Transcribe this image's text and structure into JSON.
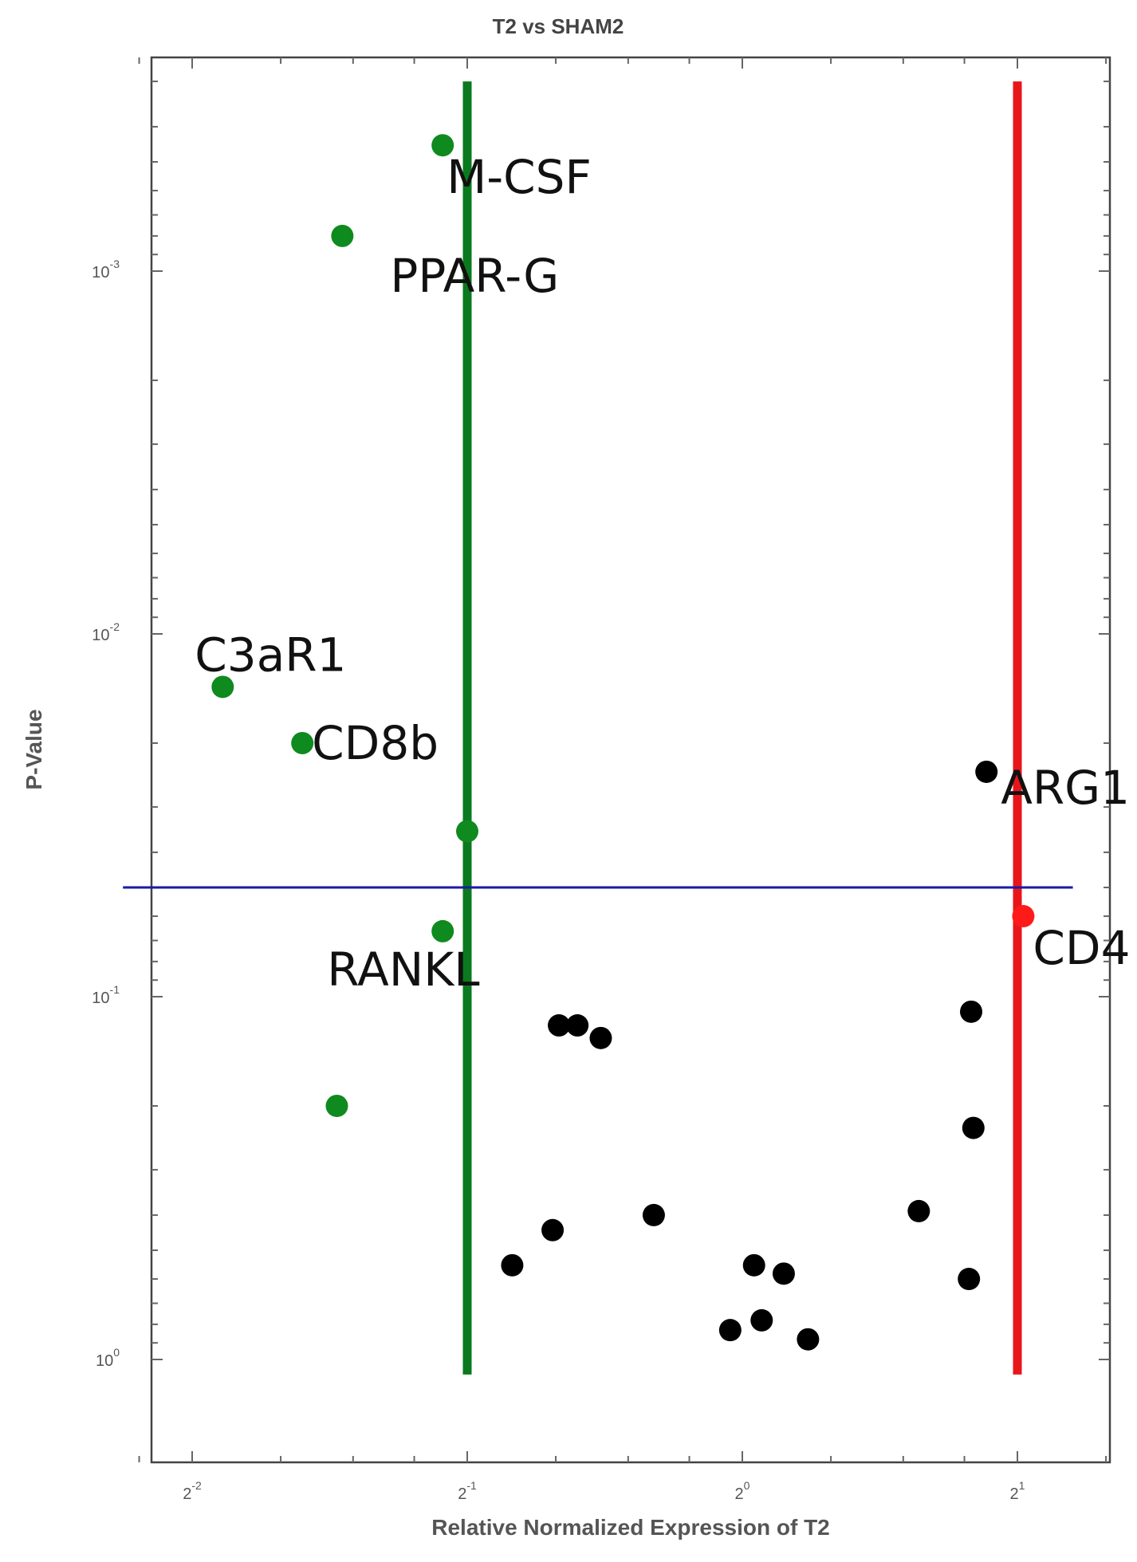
{
  "chart_data": {
    "type": "scatter",
    "title": "T2 vs SHAM2",
    "xlabel": "Relative Normalized Expression of T2",
    "ylabel": "P-Value",
    "x_scale": "log2",
    "y_scale": "log10-inverted",
    "xlim": [
      0.2,
      2.5
    ],
    "ylim": [
      0.00025,
      1.5
    ],
    "x_ticks": [
      {
        "value": 0.25,
        "base": "2",
        "exp": "-2"
      },
      {
        "value": 0.5,
        "base": "2",
        "exp": "-1"
      },
      {
        "value": 1,
        "base": "2",
        "exp": "0"
      },
      {
        "value": 2,
        "base": "2",
        "exp": "1"
      }
    ],
    "y_ticks": [
      {
        "value": 0.001,
        "base": "10",
        "exp": "-3"
      },
      {
        "value": 0.01,
        "base": "10",
        "exp": "-2"
      },
      {
        "value": 0.1,
        "base": "10",
        "exp": "-1"
      },
      {
        "value": 1,
        "base": "10",
        "exp": "0"
      }
    ],
    "threshold_lines": [
      {
        "type": "vertical",
        "value": 0.5,
        "color": "#0b7a1e",
        "range": [
          0.0003,
          1.1
        ]
      },
      {
        "type": "vertical",
        "value": 2,
        "color": "#e8161b",
        "range": [
          0.0003,
          1.1
        ]
      },
      {
        "type": "horizontal",
        "value": 0.05,
        "color": "#1a1aa8",
        "range": [
          0.21,
          2.3
        ]
      }
    ],
    "colors": {
      "down": "#0f8a1e",
      "up": "#ff1a1a",
      "nochange": "#000000"
    },
    "series": [
      {
        "group": "down",
        "points": [
          {
            "x": 0.47,
            "y": 0.00045,
            "label": "M-CSF"
          },
          {
            "x": 0.365,
            "y": 0.0008,
            "label": "PPAR-G"
          },
          {
            "x": 0.27,
            "y": 0.014,
            "label": "C3aR1"
          },
          {
            "x": 0.33,
            "y": 0.02,
            "label": "CD8b"
          },
          {
            "x": 0.5,
            "y": 0.035,
            "label": ""
          },
          {
            "x": 0.47,
            "y": 0.066,
            "label": "RANKL"
          },
          {
            "x": 0.36,
            "y": 0.2,
            "label": ""
          }
        ]
      },
      {
        "group": "up",
        "points": [
          {
            "x": 2.03,
            "y": 0.06,
            "label": "CD4"
          }
        ]
      },
      {
        "group": "nochange",
        "points": [
          {
            "x": 1.85,
            "y": 0.024,
            "label": "ARG1"
          },
          {
            "x": 0.56,
            "y": 0.55,
            "label": ""
          },
          {
            "x": 0.63,
            "y": 0.12,
            "label": ""
          },
          {
            "x": 0.66,
            "y": 0.12,
            "label": ""
          },
          {
            "x": 0.7,
            "y": 0.13,
            "label": ""
          },
          {
            "x": 0.62,
            "y": 0.44,
            "label": ""
          },
          {
            "x": 0.8,
            "y": 0.4,
            "label": ""
          },
          {
            "x": 0.97,
            "y": 0.83,
            "label": ""
          },
          {
            "x": 1.03,
            "y": 0.55,
            "label": ""
          },
          {
            "x": 1.05,
            "y": 0.78,
            "label": ""
          },
          {
            "x": 1.11,
            "y": 0.58,
            "label": ""
          },
          {
            "x": 1.18,
            "y": 0.88,
            "label": ""
          },
          {
            "x": 1.56,
            "y": 0.39,
            "label": ""
          },
          {
            "x": 1.78,
            "y": 0.11,
            "label": ""
          },
          {
            "x": 1.79,
            "y": 0.23,
            "label": ""
          },
          {
            "x": 1.77,
            "y": 0.6,
            "label": ""
          }
        ]
      }
    ]
  }
}
